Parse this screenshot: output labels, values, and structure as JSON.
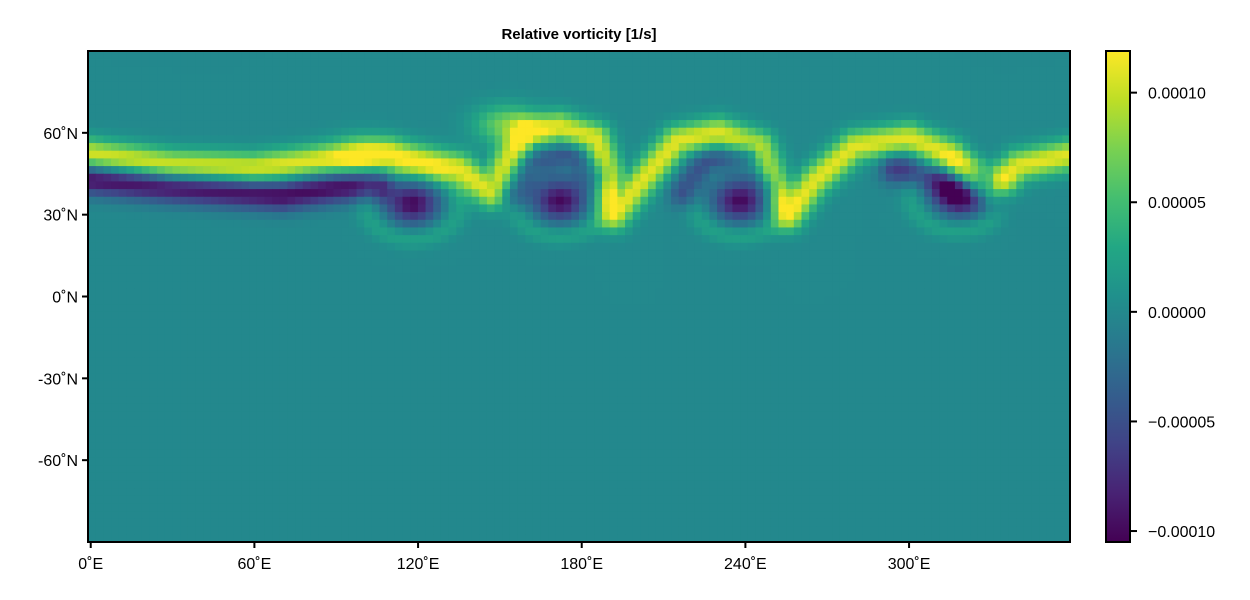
{
  "chart_data": {
    "type": "heatmap",
    "title": "Relative vorticity [1/s]",
    "xlabel": "",
    "ylabel": "",
    "xlim": [
      -1,
      359
    ],
    "ylim": [
      -90,
      90
    ],
    "x_ticks": [
      0,
      60,
      120,
      180,
      240,
      300
    ],
    "x_tick_labels": [
      "0˚E",
      "60˚E",
      "120˚E",
      "180˚E",
      "240˚E",
      "300˚E"
    ],
    "y_ticks": [
      60,
      30,
      0,
      -30,
      -60
    ],
    "y_tick_labels": [
      "60˚N",
      "30˚N",
      "0˚N",
      "-30˚N",
      "-60˚N"
    ],
    "colormap": "viridis",
    "color_range": [
      -0.000105,
      0.000119
    ],
    "colorbar_ticks": [
      0.0001,
      5e-05,
      0,
      -5e-05,
      -0.0001
    ],
    "colorbar_tick_labels": [
      "0.00010",
      "0.00005",
      "0.00000",
      "−0.00005",
      "−0.00010"
    ],
    "grid": false,
    "field_features": {
      "positive_ridge": {
        "value": 0.00011,
        "width_deg": 4,
        "path_lon_lat": [
          [
            0,
            52
          ],
          [
            30,
            48
          ],
          [
            60,
            47
          ],
          [
            85,
            50
          ],
          [
            110,
            52
          ],
          [
            135,
            47
          ],
          [
            147,
            38
          ],
          [
            152,
            48
          ],
          [
            160,
            60
          ],
          [
            172,
            62
          ],
          [
            185,
            58
          ],
          [
            190,
            45
          ],
          [
            192,
            30
          ],
          [
            200,
            40
          ],
          [
            215,
            57
          ],
          [
            230,
            60
          ],
          [
            245,
            55
          ],
          [
            252,
            40
          ],
          [
            256,
            30
          ],
          [
            265,
            42
          ],
          [
            280,
            55
          ],
          [
            300,
            58
          ],
          [
            315,
            52
          ],
          [
            325,
            40
          ],
          [
            330,
            38
          ],
          [
            340,
            48
          ],
          [
            360,
            52
          ]
        ]
      },
      "negative_band": {
        "value": -0.0001,
        "width_deg": 4,
        "path_lon_lat": [
          [
            0,
            43
          ],
          [
            30,
            40
          ],
          [
            70,
            37
          ],
          [
            90,
            40
          ],
          [
            105,
            41
          ]
        ]
      },
      "negative_crescents": [
        {
          "value": -6e-05,
          "width_deg": 4,
          "path_lon_lat": [
            [
              155,
              38
            ],
            [
              162,
              48
            ],
            [
              175,
              51
            ],
            [
              185,
              44
            ]
          ]
        },
        {
          "value": -6e-05,
          "width_deg": 4,
          "path_lon_lat": [
            [
              218,
              38
            ],
            [
              226,
              49
            ],
            [
              240,
              51
            ],
            [
              250,
              42
            ]
          ]
        },
        {
          "value": -7e-05,
          "width_deg": 4,
          "path_lon_lat": [
            [
              295,
              47
            ],
            [
              308,
              44
            ],
            [
              320,
              38
            ],
            [
              332,
              36
            ]
          ]
        }
      ],
      "vortices": [
        {
          "lon": 118,
          "lat": 34,
          "value": -0.0001
        },
        {
          "lon": 172,
          "lat": 35,
          "value": -0.0001
        },
        {
          "lon": 238,
          "lat": 35,
          "value": -0.0001
        },
        {
          "lon": 318,
          "lat": 37,
          "value": -9e-05
        }
      ],
      "secondary_positive": [
        {
          "lon": 152,
          "lat": 63,
          "value": 7e-05
        },
        {
          "lon": 100,
          "lat": 53,
          "value": 4e-05
        }
      ]
    }
  }
}
